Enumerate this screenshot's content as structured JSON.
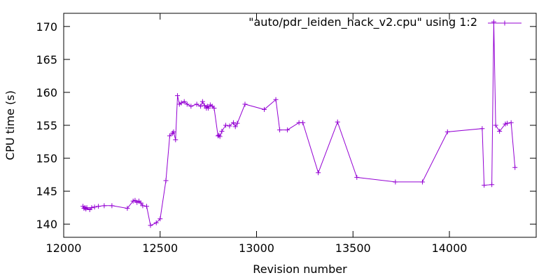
{
  "chart_data": {
    "type": "line",
    "title": "",
    "xlabel": "Revision number",
    "ylabel": "CPU time (s)",
    "xlim": [
      12000,
      14450
    ],
    "ylim": [
      138,
      172
    ],
    "xticks": [
      12000,
      12500,
      13000,
      13500,
      14000
    ],
    "yticks": [
      140,
      145,
      150,
      155,
      160,
      165,
      170
    ],
    "grid": false,
    "legend_position": "top-right",
    "series": [
      {
        "name": "\"auto/pdr_leiden_hack_v2.cpu\" using 1:2",
        "color": "#9400d3",
        "marker": "plus",
        "x": [
          12100,
          12105,
          12110,
          12115,
          12120,
          12135,
          12145,
          12160,
          12180,
          12210,
          12250,
          12330,
          12360,
          12370,
          12380,
          12390,
          12400,
          12410,
          12430,
          12450,
          12480,
          12500,
          12530,
          12550,
          12565,
          12570,
          12580,
          12590,
          12600,
          12610,
          12625,
          12640,
          12660,
          12690,
          12710,
          12720,
          12730,
          12740,
          12745,
          12750,
          12760,
          12770,
          12780,
          12800,
          12805,
          12810,
          12820,
          12840,
          12860,
          12880,
          12890,
          12900,
          12940,
          13040,
          13100,
          13120,
          13160,
          13220,
          13240,
          13320,
          13420,
          13520,
          13720,
          13860,
          13990,
          14170,
          14180,
          14220,
          14230,
          14240,
          14260,
          14290,
          14300,
          14320,
          14340
        ],
        "y": [
          142.7,
          142.4,
          142.5,
          142.3,
          142.5,
          142.2,
          142.5,
          142.6,
          142.7,
          142.8,
          142.8,
          142.4,
          143.5,
          143.6,
          143.3,
          143.5,
          143.2,
          142.8,
          142.7,
          139.8,
          140.2,
          140.8,
          146.6,
          153.4,
          153.8,
          154.0,
          152.8,
          159.5,
          158.2,
          158.4,
          158.6,
          158.2,
          157.9,
          158.2,
          157.9,
          158.6,
          158.0,
          157.6,
          157.9,
          157.6,
          158.1,
          157.9,
          157.6,
          153.4,
          153.5,
          153.3,
          154.1,
          155.0,
          154.9,
          155.4,
          154.8,
          155.3,
          158.2,
          157.4,
          158.9,
          154.3,
          154.3,
          155.4,
          155.4,
          147.8,
          155.5,
          147.1,
          146.4,
          146.4,
          154.0,
          154.5,
          145.9,
          146.0,
          170.7,
          155.0,
          154.1,
          155.2,
          155.3,
          155.4,
          148.6
        ]
      }
    ]
  }
}
